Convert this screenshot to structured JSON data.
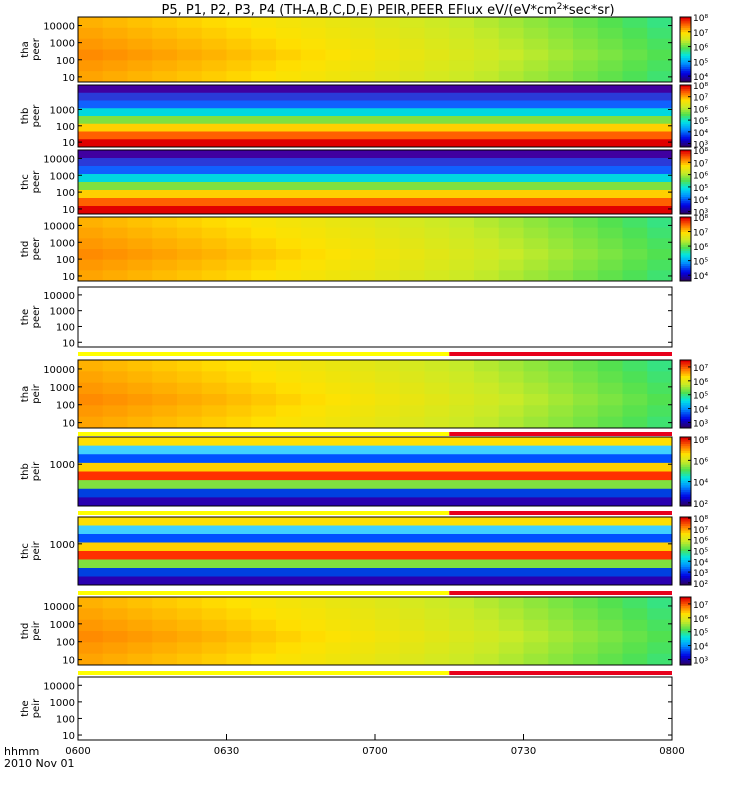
{
  "title": "P5, P1, P2, P3, P4 (TH-A,B,C,D,E) PEIR,PEER EFlux eV/(eV*cm",
  "title_sup": "2",
  "title_tail": "*sec*sr)",
  "x_axis": {
    "label_line1": "hhmm",
    "label_line2": "2010 Nov 01",
    "ticks": [
      "0600",
      "0630",
      "0700",
      "0730",
      "0800"
    ],
    "range_minutes": [
      0,
      120
    ]
  },
  "chart_data": [
    {
      "type": "heatmap",
      "probe": "tha",
      "species": "peer",
      "ylabel": [
        "tha",
        "peer"
      ],
      "yscale": "log",
      "yticks": [
        "10",
        "100",
        "1000",
        "10000"
      ],
      "colorbar": {
        "scale": "log",
        "ticks": [
          "10⁴",
          "10⁵",
          "10⁶",
          "10⁷",
          "10⁸"
        ],
        "min_exp": 3.6,
        "max_exp": 8.0
      }
    },
    {
      "type": "heatmap",
      "probe": "thb",
      "species": "peer",
      "ylabel": [
        "thb",
        "peer"
      ],
      "yscale": "log",
      "yticks": [
        "10",
        "100",
        "1000"
      ],
      "colorbar": {
        "scale": "log",
        "ticks": [
          "10³",
          "10⁴",
          "10⁵",
          "10⁶",
          "10⁷",
          "10⁸"
        ],
        "min_exp": 2.7,
        "max_exp": 8.0
      }
    },
    {
      "type": "heatmap",
      "probe": "thc",
      "species": "peer",
      "ylabel": [
        "thc",
        "peer"
      ],
      "yscale": "log",
      "yticks": [
        "10",
        "100",
        "1000",
        "10000"
      ],
      "colorbar": {
        "scale": "log",
        "ticks": [
          "10³",
          "10⁴",
          "10⁵",
          "10⁶",
          "10⁷",
          "10⁸"
        ],
        "min_exp": 2.8,
        "max_exp": 8.0
      }
    },
    {
      "type": "heatmap",
      "probe": "thd",
      "species": "peer",
      "ylabel": [
        "thd",
        "peer"
      ],
      "yscale": "log",
      "yticks": [
        "10",
        "100",
        "1000",
        "10000"
      ],
      "colorbar": {
        "scale": "log",
        "ticks": [
          "10⁴",
          "10⁵",
          "10⁶",
          "10⁷",
          "10⁸"
        ],
        "min_exp": 3.6,
        "max_exp": 8.0
      }
    },
    {
      "type": "heatmap",
      "probe": "the",
      "species": "peer",
      "ylabel": [
        "the",
        "peer"
      ],
      "yscale": "log",
      "yticks": [
        "10",
        "100",
        "1000",
        "10000"
      ],
      "colorbar": null
    },
    {
      "type": "heatmap",
      "probe": "tha",
      "species": "peir",
      "ylabel": [
        "tha",
        "peir"
      ],
      "yscale": "log",
      "yticks": [
        "10",
        "100",
        "1000",
        "10000"
      ],
      "colorbar": {
        "scale": "log",
        "ticks": [
          "10³",
          "10⁴",
          "10⁵",
          "10⁶",
          "10⁷"
        ],
        "min_exp": 2.6,
        "max_exp": 7.5
      }
    },
    {
      "type": "heatmap",
      "probe": "thb",
      "species": "peir",
      "ylabel": [
        "thb",
        "peir"
      ],
      "yscale": "log",
      "yticks": [
        "1000"
      ],
      "colorbar": {
        "scale": "log",
        "ticks": [
          "10²",
          "10⁴",
          "10⁶",
          "10⁸"
        ],
        "min_exp": 1.7,
        "max_exp": 8.2
      }
    },
    {
      "type": "heatmap",
      "probe": "thc",
      "species": "peir",
      "ylabel": [
        "thc",
        "peir"
      ],
      "yscale": "log",
      "yticks": [
        "1000"
      ],
      "colorbar": {
        "scale": "log",
        "ticks": [
          "10²",
          "10³",
          "10⁴",
          "10⁵",
          "10⁶",
          "10⁷",
          "10⁸"
        ],
        "min_exp": 1.8,
        "max_exp": 8.1
      }
    },
    {
      "type": "heatmap",
      "probe": "thd",
      "species": "peir",
      "ylabel": [
        "thd",
        "peir"
      ],
      "yscale": "log",
      "yticks": [
        "10",
        "100",
        "1000",
        "10000"
      ],
      "colorbar": {
        "scale": "log",
        "ticks": [
          "10³",
          "10⁴",
          "10⁵",
          "10⁶",
          "10⁷"
        ],
        "min_exp": 2.6,
        "max_exp": 7.5
      }
    },
    {
      "type": "heatmap",
      "probe": "the",
      "species": "peir",
      "ylabel": [
        "the",
        "peir"
      ],
      "yscale": "log",
      "yticks": [
        "10",
        "100",
        "1000",
        "10000"
      ],
      "colorbar": null
    }
  ],
  "colors": {
    "quality_good": "#ffff00",
    "quality_bad": "#e8001c"
  }
}
